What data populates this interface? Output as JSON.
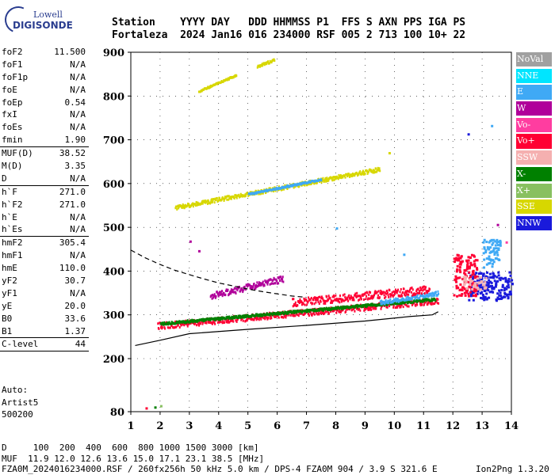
{
  "logo": {
    "line1": "Lowell",
    "line2": "DIGISONDE"
  },
  "header": {
    "line1": "Station    YYYY DAY   DDD HHMMSS P1  FFS S AXN PPS IGA PS",
    "line2": "Fortaleza  2024 Jan16 016 234000 RSF 005 2 713 100 10+ 22"
  },
  "params": [
    {
      "k": "foF2",
      "v": "11.500",
      "sep": false
    },
    {
      "k": "foF1",
      "v": "N/A",
      "sep": false
    },
    {
      "k": "foF1p",
      "v": "N/A",
      "sep": false
    },
    {
      "k": "foE",
      "v": "N/A",
      "sep": false
    },
    {
      "k": "foEp",
      "v": "0.54",
      "sep": false
    },
    {
      "k": "fxI",
      "v": "N/A",
      "sep": false
    },
    {
      "k": "foEs",
      "v": "N/A",
      "sep": false
    },
    {
      "k": "fmin",
      "v": "1.90",
      "sep": false
    },
    {
      "k": "MUF(D)",
      "v": "38.52",
      "sep": true
    },
    {
      "k": "M(D)",
      "v": "3.35",
      "sep": false
    },
    {
      "k": "D",
      "v": "N/A",
      "sep": false
    },
    {
      "k": "h`F",
      "v": "271.0",
      "sep": true
    },
    {
      "k": "h`F2",
      "v": "271.0",
      "sep": false
    },
    {
      "k": "h`E",
      "v": "N/A",
      "sep": false
    },
    {
      "k": "h`Es",
      "v": "N/A",
      "sep": false
    },
    {
      "k": "hmF2",
      "v": "305.4",
      "sep": true
    },
    {
      "k": "hmF1",
      "v": "N/A",
      "sep": false
    },
    {
      "k": "hmE",
      "v": "110.0",
      "sep": false
    },
    {
      "k": "yF2",
      "v": "30.7",
      "sep": false
    },
    {
      "k": "yF1",
      "v": "N/A",
      "sep": false
    },
    {
      "k": "yE",
      "v": "20.0",
      "sep": false
    },
    {
      "k": "B0",
      "v": "33.6",
      "sep": false
    },
    {
      "k": "B1",
      "v": "1.37",
      "sep": false
    },
    {
      "k": "C-level",
      "v": "44",
      "sep": true
    }
  ],
  "auto": {
    "line1": "Auto:",
    "line2": "Artist5",
    "line3": "500200"
  },
  "legend": [
    {
      "label": "NoVal",
      "color": "#a0a0a0"
    },
    {
      "label": "NNE",
      "color": "#00e5ff"
    },
    {
      "label": "E",
      "color": "#3fa9f5"
    },
    {
      "label": "W",
      "color": "#b0009a"
    },
    {
      "label": "Vo-",
      "color": "#ff3da0"
    },
    {
      "label": "Vo+",
      "color": "#ff0033"
    },
    {
      "label": "SSW",
      "color": "#f5b0b0"
    },
    {
      "label": "X-",
      "color": "#008000"
    },
    {
      "label": "X+",
      "color": "#88c060"
    },
    {
      "label": "SSE",
      "color": "#d7d700"
    },
    {
      "label": "NNW",
      "color": "#1a1adb"
    }
  ],
  "footer": {
    "line1": "D     100  200  400  600  800 1000 1500 3000 [km]",
    "line2": "MUF  11.9 12.0 12.6 13.6 15.0 17.1 23.1 38.5 [MHz]",
    "line3": "FZA0M_2024016234000.RSF / 260fx256h 50 kHz 5.0 km / DPS-4 FZA0M 904 / 3.9 S 321.6 E",
    "version": "Ion2Png 1.3.20"
  },
  "chart_data": {
    "type": "scatter",
    "xlim": [
      1,
      14
    ],
    "ylim": [
      80,
      900
    ],
    "xticks": [
      1,
      2,
      3,
      4,
      5,
      6,
      7,
      8,
      9,
      10,
      11,
      12,
      13,
      14
    ],
    "yticks": [
      80,
      200,
      300,
      400,
      500,
      600,
      700,
      800,
      900
    ],
    "grid": true,
    "curves": [
      {
        "name": "",
        "style": "solid",
        "points": [
          [
            1.15,
            230
          ],
          [
            2,
            242
          ],
          [
            3,
            257
          ],
          [
            5,
            267
          ],
          [
            7,
            276
          ],
          [
            9,
            286
          ],
          [
            10.5,
            296
          ],
          [
            11.3,
            300
          ],
          [
            11.5,
            307
          ]
        ]
      },
      {
        "name": "",
        "style": "dashed",
        "points": [
          [
            1.0,
            448
          ],
          [
            1.5,
            430
          ],
          [
            2,
            415
          ],
          [
            2.5,
            402
          ],
          [
            3,
            392
          ],
          [
            3.5,
            382
          ],
          [
            4,
            373
          ],
          [
            4.5,
            366
          ],
          [
            5,
            359
          ],
          [
            5.5,
            353
          ],
          [
            6,
            348
          ],
          [
            6.5,
            343
          ],
          [
            7,
            340
          ]
        ]
      }
    ],
    "trace_segments": [
      {
        "color": "#ff0033",
        "x": [
          1.9,
          11.5
        ],
        "y": [
          277,
          335
        ],
        "thick": 8
      },
      {
        "color": "#008000",
        "x": [
          2.0,
          11.4
        ],
        "y": [
          282,
          338
        ],
        "thick": 3
      },
      {
        "color": "#3fa9f5",
        "x": [
          9.5,
          11.5
        ],
        "y": [
          330,
          352
        ],
        "thick": 5
      },
      {
        "color": "#d7d700",
        "x": [
          2.5,
          9.5
        ],
        "y": [
          547,
          635
        ],
        "thick": 5
      },
      {
        "color": "#3fa9f5",
        "x": [
          5,
          7.5
        ],
        "y": [
          578,
          612
        ],
        "thick": 2
      },
      {
        "color": "#d7d700",
        "x": [
          3.3,
          4.6
        ],
        "y": [
          813,
          850
        ],
        "thick": 2
      },
      {
        "color": "#d7d700",
        "x": [
          5.3,
          5.9
        ],
        "y": [
          870,
          885
        ],
        "thick": 3
      },
      {
        "color": "#b0009a",
        "x": [
          3.7,
          6.2
        ],
        "y": [
          345,
          385
        ],
        "thick": 8
      },
      {
        "color": "#ff0033",
        "x": [
          6.5,
          11.2
        ],
        "y": [
          330,
          360
        ],
        "thick": 10
      }
    ],
    "clusters": [
      {
        "color": "#1a1adb",
        "x": [
          12.5,
          14
        ],
        "y": [
          335,
          400
        ]
      },
      {
        "color": "#ff0033",
        "x": [
          12.0,
          12.8
        ],
        "y": [
          345,
          440
        ]
      },
      {
        "color": "#f5b0b0",
        "x": [
          12.3,
          13.1
        ],
        "y": [
          360,
          390
        ]
      },
      {
        "color": "#3fa9f5",
        "x": [
          13.0,
          13.6
        ],
        "y": [
          410,
          475
        ]
      }
    ],
    "points": [
      {
        "x": 1.5,
        "y": 90,
        "color": "#ff0033"
      },
      {
        "x": 1.8,
        "y": 92,
        "color": "#008000"
      },
      {
        "x": 2.0,
        "y": 95,
        "color": "#88c060"
      },
      {
        "x": 12.5,
        "y": 715,
        "color": "#1a1adb"
      },
      {
        "x": 13.3,
        "y": 734,
        "color": "#3fa9f5"
      },
      {
        "x": 3.0,
        "y": 470,
        "color": "#b0009a"
      },
      {
        "x": 3.3,
        "y": 448,
        "color": "#b0009a"
      },
      {
        "x": 8.0,
        "y": 500,
        "color": "#3fa9f5"
      },
      {
        "x": 10.3,
        "y": 440,
        "color": "#3fa9f5"
      },
      {
        "x": 13.5,
        "y": 508,
        "color": "#b0009a"
      },
      {
        "x": 13.8,
        "y": 468,
        "color": "#ff3da0"
      },
      {
        "x": 9.8,
        "y": 672,
        "color": "#d7d700"
      }
    ]
  }
}
